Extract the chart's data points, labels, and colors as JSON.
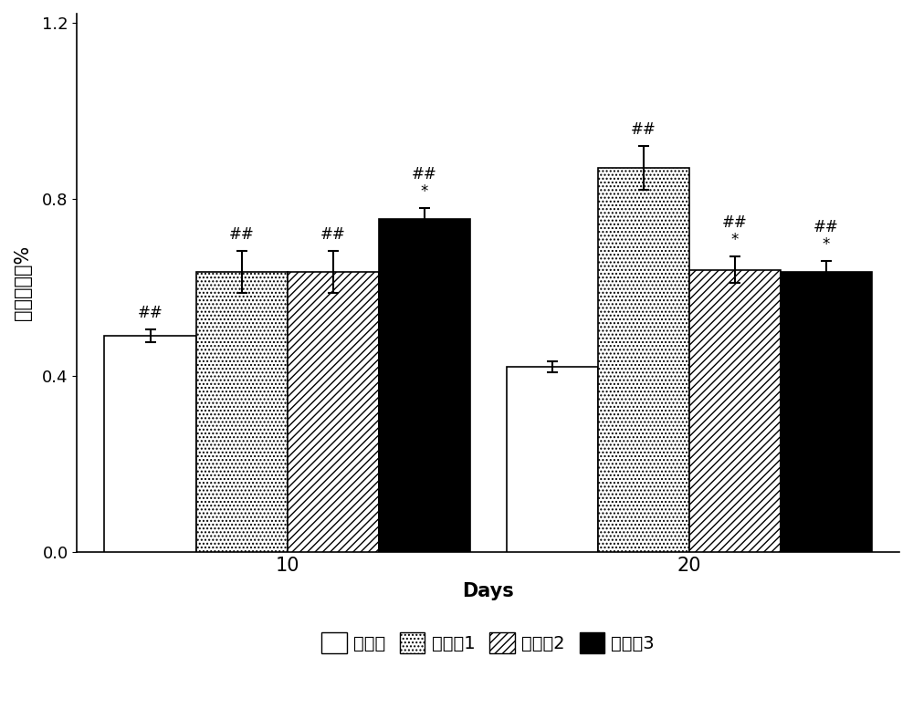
{
  "groups": [
    "10",
    "20"
  ],
  "series": [
    {
      "label": "对照组",
      "values": [
        0.49,
        0.42
      ],
      "errors": [
        0.015,
        0.013
      ],
      "color": "white",
      "hatch": ""
    },
    {
      "label": "试验组1",
      "values": [
        0.635,
        0.87
      ],
      "errors": [
        0.048,
        0.05
      ],
      "color": "white",
      "hatch": "...."
    },
    {
      "label": "试验组2",
      "values": [
        0.635,
        0.64
      ],
      "errors": [
        0.048,
        0.03
      ],
      "color": "white",
      "hatch": "////"
    },
    {
      "label": "试验组3",
      "values": [
        0.755,
        0.635
      ],
      "errors": [
        0.025,
        0.025
      ],
      "color": "black",
      "hatch": ""
    }
  ],
  "annot_10": [
    "##",
    "##",
    "##",
    "##\n*"
  ],
  "annot_20": [
    "",
    "##",
    "##\n*",
    "##\n*"
  ],
  "ylabel": "肺相对重量%",
  "xlabel": "Days",
  "ylim": [
    0.0,
    1.22
  ],
  "yticks": [
    0.0,
    0.4,
    0.8,
    1.2
  ],
  "bar_width": 0.1,
  "group_centers": [
    0.28,
    0.72
  ],
  "xlim": [
    0.05,
    0.95
  ],
  "background_color": "white",
  "legend_labels": [
    "对照组",
    "试验组1",
    "试验组2",
    "试验组3"
  ],
  "legend_colors": [
    "white",
    "white",
    "white",
    "black"
  ],
  "legend_hatches": [
    "",
    "....",
    "////",
    ""
  ]
}
